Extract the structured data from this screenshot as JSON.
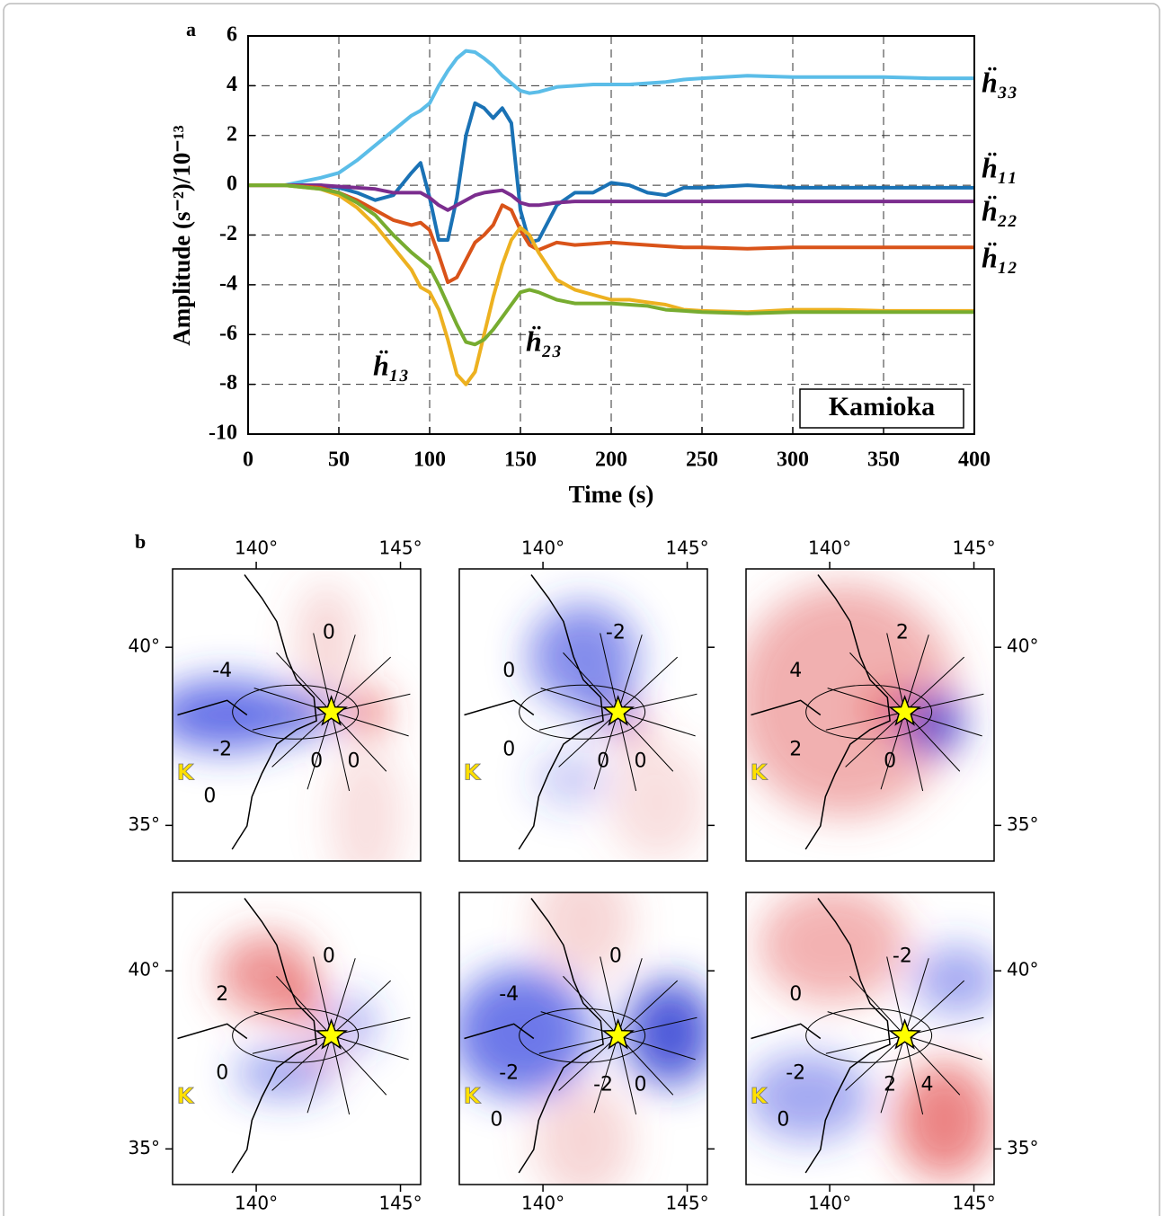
{
  "panel_labels": [
    "a",
    "b"
  ],
  "chart_data": {
    "type": "line",
    "ylabel": "Amplitude (s⁻²)/10⁻¹³",
    "xlabel": "Time (s)",
    "annotation": "Kamioka",
    "x": [
      0,
      20,
      40,
      50,
      60,
      70,
      80,
      90,
      95,
      100,
      105,
      110,
      115,
      120,
      125,
      130,
      135,
      140,
      145,
      150,
      155,
      160,
      170,
      180,
      190,
      200,
      210,
      220,
      230,
      240,
      250,
      275,
      300,
      325,
      350,
      375,
      400
    ],
    "series": [
      {
        "name": "ḧ₃₃",
        "color": "#5bbde8",
        "values": [
          0,
          0,
          0.3,
          0.5,
          1.0,
          1.6,
          2.2,
          2.8,
          3.0,
          3.3,
          4.0,
          4.6,
          5.1,
          5.4,
          5.35,
          5.1,
          4.8,
          4.4,
          4.1,
          3.8,
          3.7,
          3.75,
          3.95,
          4.0,
          4.05,
          4.05,
          4.05,
          4.1,
          4.15,
          4.25,
          4.3,
          4.4,
          4.35,
          4.35,
          4.35,
          4.3,
          4.3
        ]
      },
      {
        "name": "ḧ₁₁",
        "color": "#1a72b5",
        "values": [
          0,
          0,
          0,
          -0.1,
          -0.3,
          -0.6,
          -0.4,
          0.5,
          0.9,
          -0.5,
          -2.2,
          -2.2,
          -0.5,
          2.0,
          3.3,
          3.1,
          2.7,
          3.1,
          2.5,
          -1.0,
          -2.3,
          -2.2,
          -0.8,
          -0.3,
          -0.3,
          0.1,
          0,
          -0.3,
          -0.4,
          -0.1,
          -0.1,
          0,
          -0.1,
          -0.1,
          -0.1,
          -0.1,
          -0.1
        ]
      },
      {
        "name": "ḧ₂₂",
        "color": "#7b2d8e",
        "values": [
          0,
          0,
          0,
          -0.05,
          -0.1,
          -0.15,
          -0.3,
          -0.3,
          -0.3,
          -0.5,
          -0.8,
          -1.0,
          -0.8,
          -0.6,
          -0.4,
          -0.3,
          -0.25,
          -0.2,
          -0.4,
          -0.7,
          -0.8,
          -0.8,
          -0.7,
          -0.65,
          -0.65,
          -0.65,
          -0.65,
          -0.65,
          -0.65,
          -0.65,
          -0.65,
          -0.65,
          -0.65,
          -0.65,
          -0.65,
          -0.65,
          -0.65
        ]
      },
      {
        "name": "ḧ₁₂",
        "color": "#d95319",
        "values": [
          0,
          0,
          -0.1,
          -0.3,
          -0.6,
          -1.0,
          -1.4,
          -1.6,
          -1.5,
          -1.8,
          -2.8,
          -3.9,
          -3.7,
          -3.0,
          -2.3,
          -2.0,
          -1.6,
          -0.8,
          -1.0,
          -1.8,
          -2.4,
          -2.6,
          -2.3,
          -2.4,
          -2.35,
          -2.3,
          -2.35,
          -2.4,
          -2.45,
          -2.5,
          -2.5,
          -2.55,
          -2.5,
          -2.5,
          -2.5,
          -2.5,
          -2.5
        ]
      },
      {
        "name": "ḧ₁₃",
        "color": "#edb120",
        "values": [
          0,
          0,
          -0.15,
          -0.4,
          -0.9,
          -1.6,
          -2.5,
          -3.4,
          -4.1,
          -4.3,
          -5.0,
          -6.2,
          -7.6,
          -8.0,
          -7.5,
          -6.0,
          -4.5,
          -3.2,
          -2.2,
          -1.7,
          -2.0,
          -2.7,
          -3.8,
          -4.2,
          -4.4,
          -4.6,
          -4.6,
          -4.7,
          -4.8,
          -5.0,
          -5.05,
          -5.1,
          -5.0,
          -5.0,
          -5.05,
          -5.05,
          -5.05
        ]
      },
      {
        "name": "ḧ₂₃",
        "color": "#77ac30",
        "values": [
          0,
          0,
          -0.15,
          -0.3,
          -0.7,
          -1.2,
          -2.0,
          -2.7,
          -3.0,
          -3.3,
          -4.0,
          -4.8,
          -5.6,
          -6.3,
          -6.4,
          -6.2,
          -5.8,
          -5.3,
          -4.8,
          -4.3,
          -4.2,
          -4.3,
          -4.6,
          -4.75,
          -4.75,
          -4.75,
          -4.8,
          -4.85,
          -5.0,
          -5.05,
          -5.1,
          -5.15,
          -5.1,
          -5.1,
          -5.1,
          -5.1,
          -5.1
        ]
      }
    ],
    "xlim": [
      0,
      400
    ],
    "ylim": [
      -10,
      6
    ],
    "xticks": [
      0,
      50,
      100,
      150,
      200,
      250,
      300,
      350,
      400
    ],
    "yticks": [
      -10,
      -8,
      -6,
      -4,
      -2,
      0,
      2,
      4,
      6
    ],
    "grid": true
  },
  "maps": {
    "xlim": [
      137.1,
      145.7
    ],
    "ylim": [
      34,
      42.2
    ],
    "xticks": [
      {
        "value": 140,
        "label": "140°"
      },
      {
        "value": 145,
        "label": "145°"
      }
    ],
    "yticks": [
      {
        "value": 35,
        "label": "35°"
      },
      {
        "value": 40,
        "label": "40°"
      }
    ],
    "station_label": "K",
    "panels": [
      {
        "contour_labels": [
          "0",
          "-4",
          "-2",
          "0",
          "0",
          "0"
        ]
      },
      {
        "contour_labels": [
          "-2",
          "0",
          "0",
          "0",
          "0"
        ]
      },
      {
        "contour_labels": [
          "2",
          "4",
          "2",
          "0"
        ]
      },
      {
        "contour_labels": [
          "0",
          "2",
          "0"
        ]
      },
      {
        "contour_labels": [
          "0",
          "-4",
          "-2",
          "-2",
          "0",
          "0"
        ]
      },
      {
        "contour_labels": [
          "-2",
          "0",
          "-2",
          "2",
          "4",
          "0"
        ]
      }
    ]
  }
}
